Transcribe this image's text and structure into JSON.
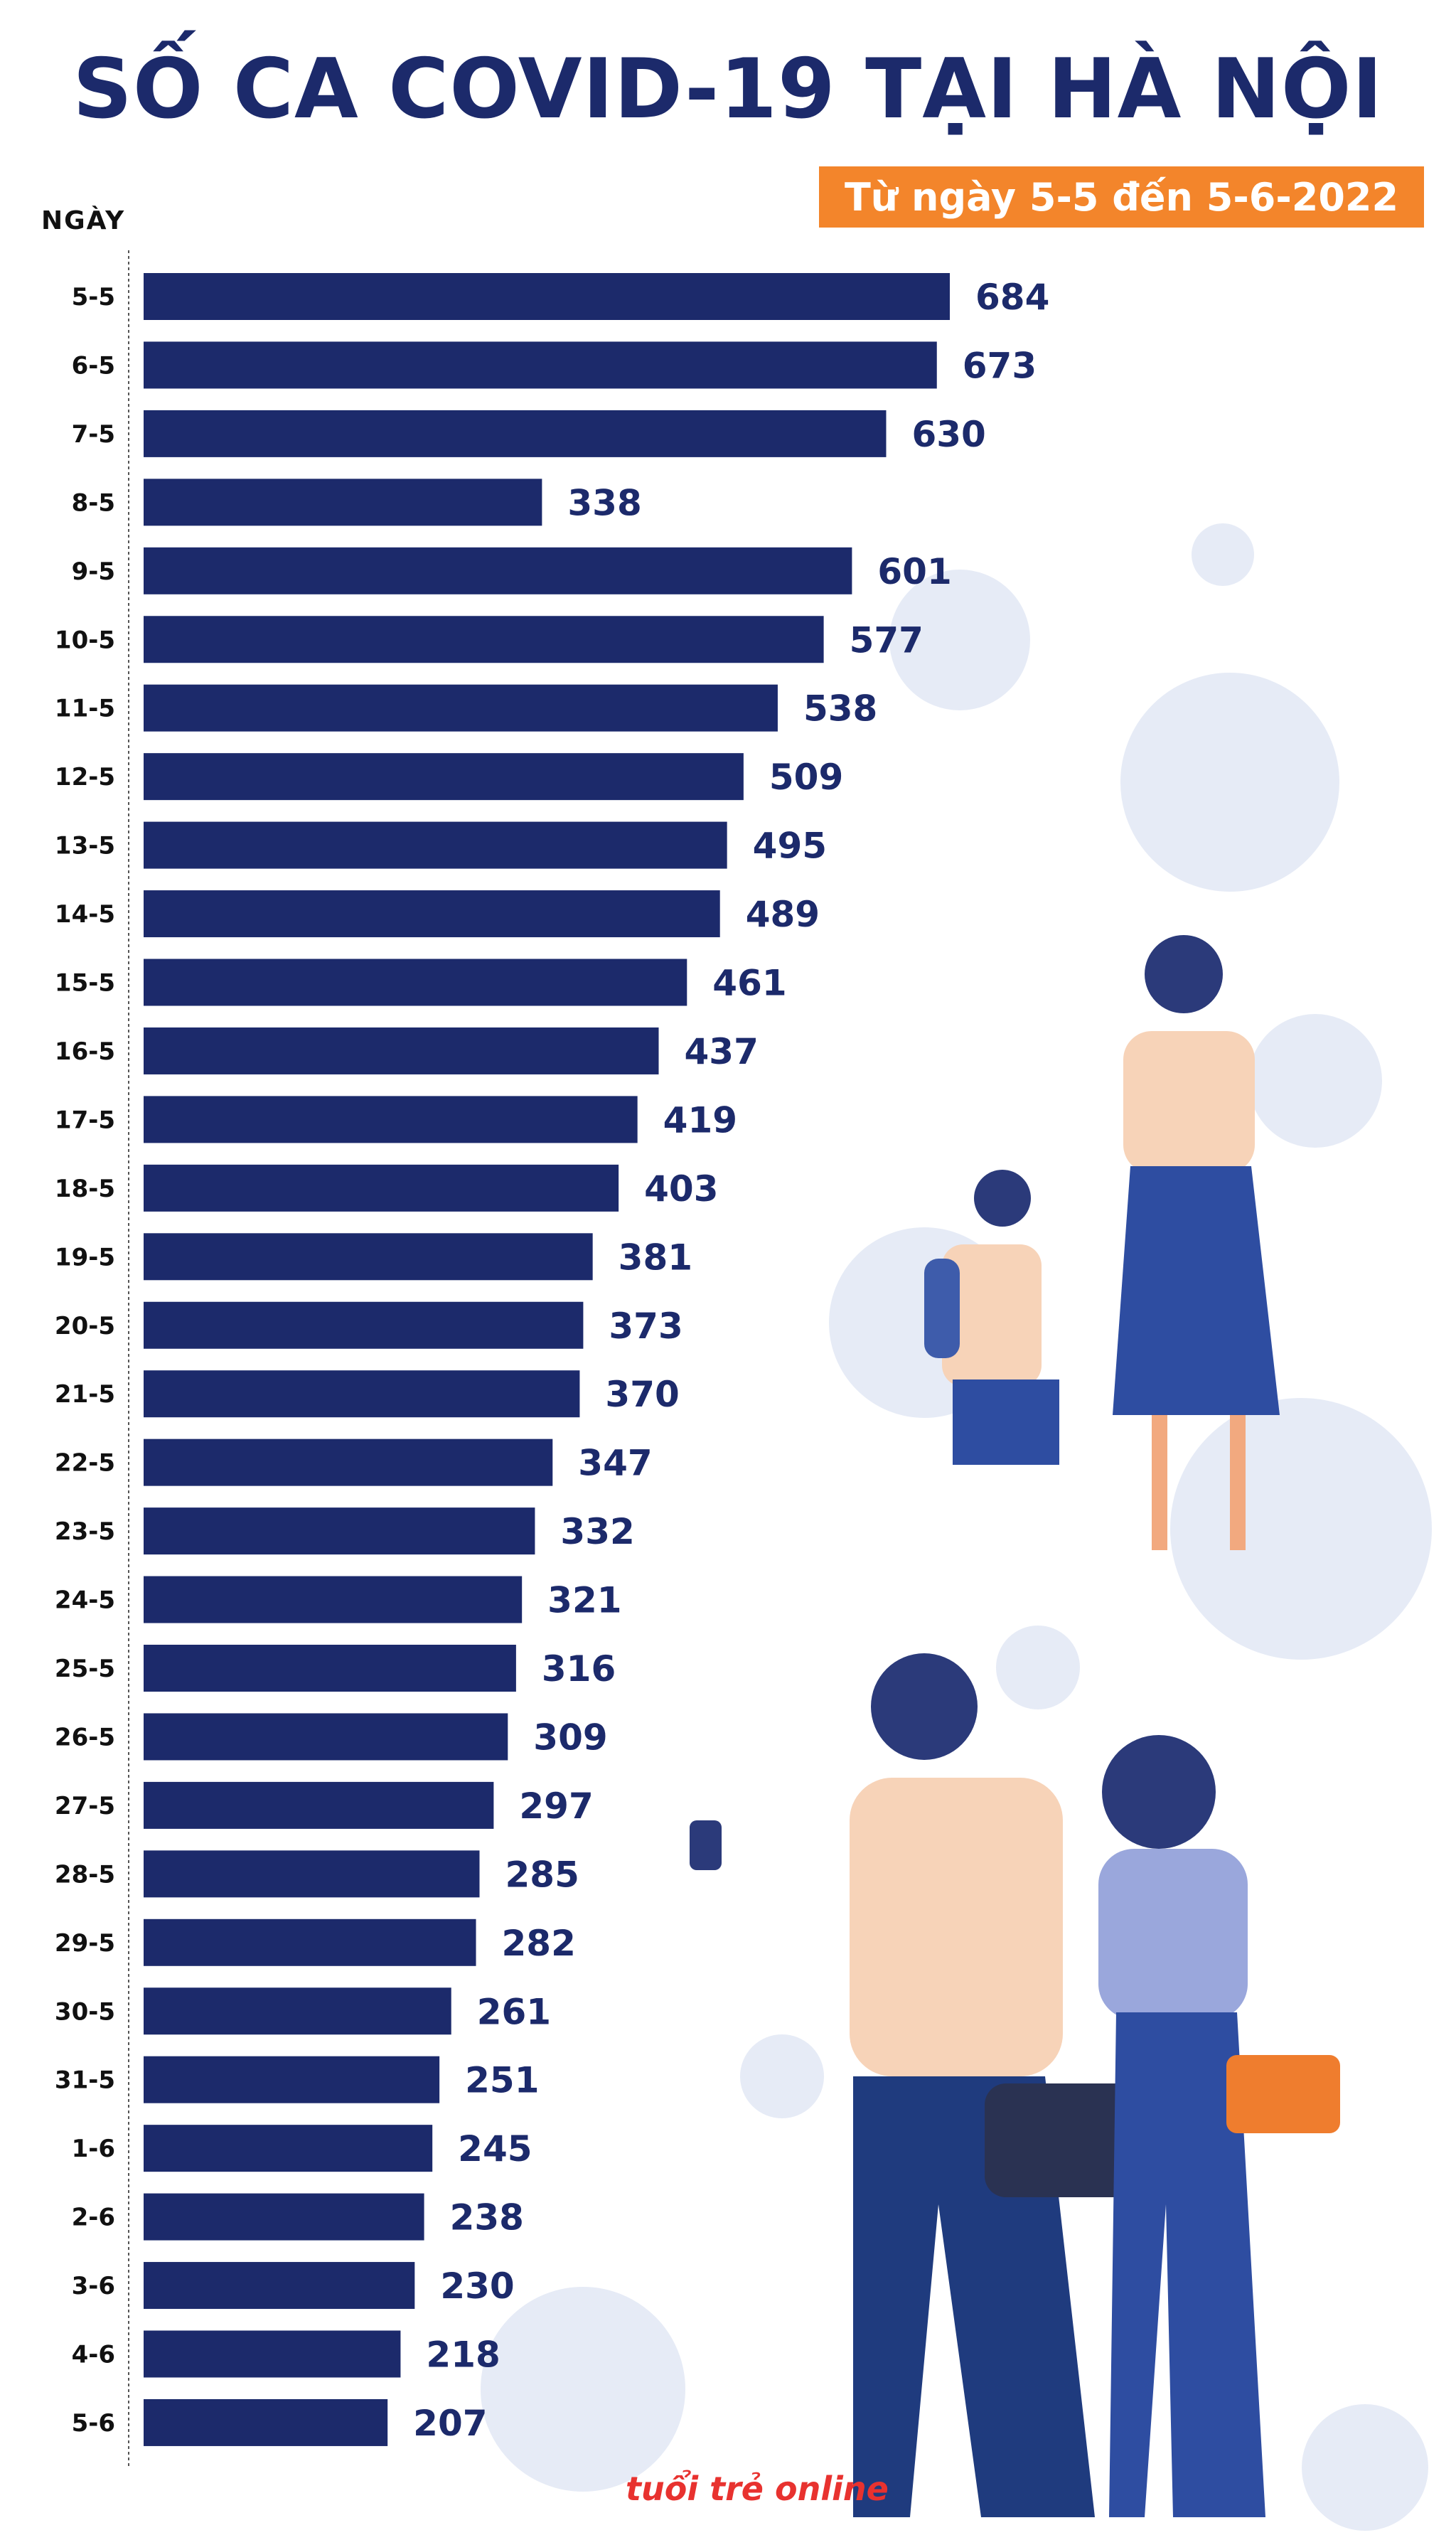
{
  "title": "SỐ CA COVID-19 TẠI HÀ NỘI",
  "subtitle": "Từ ngày 5-5 đến 5-6-2022",
  "logo_text": "tuổi trẻ online",
  "colors": {
    "title": "#1c2a6b",
    "bar": "#1c2a6b",
    "badge": "#f3852b",
    "virus": "#dfe6f5",
    "logo": "#e8322f"
  },
  "chart_data": {
    "type": "bar",
    "orientation": "horizontal",
    "title": "SỐ CA COVID-19 TẠI HÀ NỘI",
    "subtitle": "Từ ngày 5-5 đến 5-6-2022",
    "ylabel": "NGÀY",
    "xlabel": "",
    "xlim": [
      0,
      684
    ],
    "grid": false,
    "legend": "none",
    "categories": [
      "5-5",
      "6-5",
      "7-5",
      "8-5",
      "9-5",
      "10-5",
      "11-5",
      "12-5",
      "13-5",
      "14-5",
      "15-5",
      "16-5",
      "17-5",
      "18-5",
      "19-5",
      "20-5",
      "21-5",
      "22-5",
      "23-5",
      "24-5",
      "25-5",
      "26-5",
      "27-5",
      "28-5",
      "29-5",
      "30-5",
      "31-5",
      "1-6",
      "2-6",
      "3-6",
      "4-6",
      "5-6"
    ],
    "values": [
      684,
      673,
      630,
      338,
      601,
      577,
      538,
      509,
      495,
      489,
      461,
      437,
      419,
      403,
      381,
      373,
      370,
      347,
      332,
      321,
      316,
      309,
      297,
      285,
      282,
      261,
      251,
      245,
      238,
      230,
      218,
      207
    ]
  }
}
